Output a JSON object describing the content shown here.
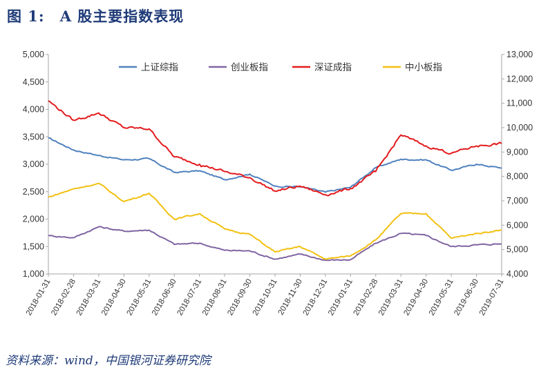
{
  "figure": {
    "label": "图 1:",
    "title": "A 股主要指数表现",
    "source": "资料来源：wind，中国银河证券研究院"
  },
  "colors": {
    "shanghai": "#4f81bd",
    "chinext": "#8064a2",
    "shenzhen": "#e31a1c",
    "sme": "#f2c010",
    "axis": "#a6a6a6"
  },
  "chart_data": {
    "type": "line",
    "x": [
      "2018-01-31",
      "2018-02-28",
      "2018-03-31",
      "2018-04-30",
      "2018-05-31",
      "2018-06-30",
      "2018-07-31",
      "2018-08-31",
      "2018-09-30",
      "2018-10-31",
      "2018-11-30",
      "2018-12-31",
      "2019-01-31",
      "2019-02-28",
      "2019-03-31",
      "2019-04-30",
      "2019-05-31",
      "2019-06-30",
      "2019-07-31"
    ],
    "x_tick_labels": [
      "2018-01-31",
      "2018-02-28",
      "2018-03-31",
      "2018-04-30",
      "2018-05-31",
      "2018-06-30",
      "2018-07-31",
      "2018-08-31",
      "2018-09-30",
      "2018-10-31",
      "2018-11-30",
      "2018-12-31",
      "2019-01-31",
      "2019-02-28",
      "2019-03-31",
      "2019-04-30",
      "2019-05-31",
      "2019-06-30",
      "2019-07-31"
    ],
    "y_left": {
      "min": 1000,
      "max": 5000,
      "ticks": [
        "1,000",
        "1,500",
        "2,000",
        "2,500",
        "3,000",
        "3,500",
        "4,000",
        "4,500",
        "5,000"
      ]
    },
    "y_right": {
      "min": 4000,
      "max": 13000,
      "ticks": [
        "4,000",
        "5,000",
        "6,000",
        "7,000",
        "8,000",
        "9,000",
        "10,000",
        "11,000",
        "12,000",
        "13,000"
      ]
    },
    "legend_position": "top",
    "series": [
      {
        "name": "上证综指",
        "axis": "left",
        "color_key": "shanghai",
        "values": [
          3480,
          3260,
          3160,
          3080,
          3100,
          2850,
          2880,
          2720,
          2820,
          2600,
          2590,
          2490,
          2580,
          2940,
          3090,
          3080,
          2890,
          3000,
          2930
        ]
      },
      {
        "name": "创业板指",
        "axis": "left",
        "color_key": "chinext",
        "values": [
          1700,
          1660,
          1860,
          1780,
          1800,
          1540,
          1560,
          1430,
          1420,
          1270,
          1360,
          1250,
          1260,
          1560,
          1740,
          1700,
          1500,
          1530,
          1550
        ]
      },
      {
        "name": "深证成指",
        "axis": "right",
        "color_key": "shenzhen",
        "values": [
          11100,
          10300,
          10600,
          10000,
          9950,
          8800,
          8500,
          8200,
          7950,
          7400,
          7600,
          7250,
          7500,
          8200,
          9700,
          9250,
          8950,
          9250,
          9350
        ]
      },
      {
        "name": "中小板指",
        "axis": "left",
        "color_key": "sme",
        "values": [
          2400,
          2550,
          2650,
          2320,
          2470,
          2000,
          2100,
          1820,
          1720,
          1400,
          1500,
          1270,
          1330,
          1620,
          2100,
          2100,
          1650,
          1740,
          1800
        ]
      }
    ]
  }
}
